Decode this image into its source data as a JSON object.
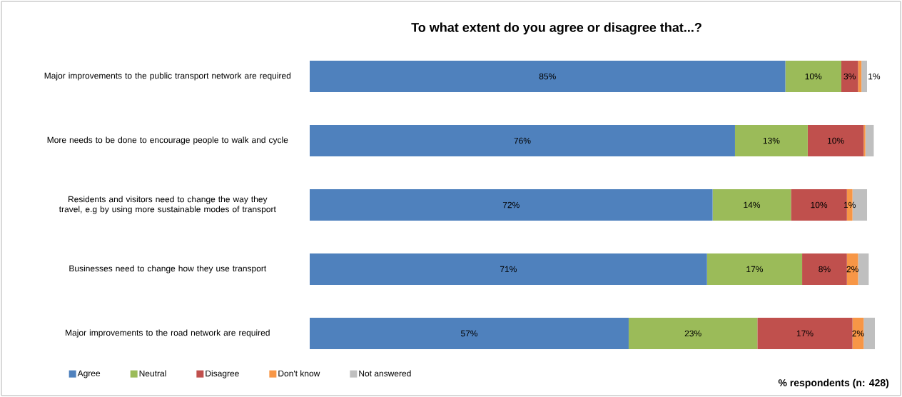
{
  "chart_data": {
    "type": "bar",
    "orientation": "horizontal",
    "stacked": true,
    "legend": "bottom",
    "title": "To what extent do you agree or disagree that...?",
    "categories": [
      "Major improvements to the public transport network are required",
      "More needs to be done to encourage people to walk and cycle",
      "Residents and visitors need to change the way they travel, e.g by using more sustainable modes of transport",
      "Businesses need to change how they use transport",
      "Major improvements to the road network are required"
    ],
    "series": [
      {
        "name": "Agree",
        "color": "#4f81bd",
        "values": [
          85,
          76,
          72,
          71,
          57
        ],
        "value_labels": [
          "85%",
          "76%",
          "72%",
          "71%",
          "57%"
        ]
      },
      {
        "name": "Neutral",
        "color": "#9bbb59",
        "values": [
          10,
          13,
          14,
          17,
          23
        ],
        "value_labels": [
          "10%",
          "13%",
          "14%",
          "17%",
          "23%"
        ]
      },
      {
        "name": "Disagree",
        "color": "#c0504d",
        "values": [
          3,
          10,
          10,
          8,
          17
        ],
        "value_labels": [
          "3%",
          "10%",
          "10%",
          "8%",
          "17%"
        ]
      },
      {
        "name": "Don't know",
        "color": "#f79646",
        "values": [
          0.6,
          0.3,
          1,
          2,
          2
        ],
        "value_labels": [
          null,
          null,
          "1%",
          "2%",
          "2%"
        ]
      },
      {
        "name": "Not answered",
        "color": "#bfbfbf",
        "values": [
          1,
          1.5,
          2.6,
          1.9,
          2
        ],
        "value_labels": [
          "1%",
          null,
          null,
          null,
          null
        ]
      }
    ],
    "annotations": [
      "% respondents (n: 428)"
    ]
  }
}
